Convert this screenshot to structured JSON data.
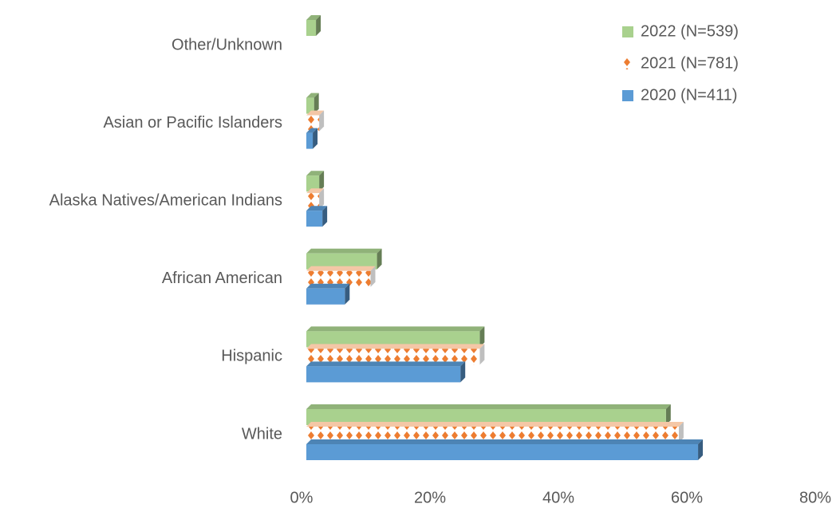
{
  "chart_data": {
    "type": "bar",
    "orientation": "horizontal",
    "three_d": true,
    "categories": [
      "White",
      "Hispanic",
      "African American",
      "Alaska Natives/American Indians",
      "Asian or Pacific Islanders",
      "Other/Unknown"
    ],
    "series": [
      {
        "name": "2022 (N=539)",
        "color": "#a9d18e",
        "values": [
          56,
          27,
          11,
          2,
          1.2,
          1.5
        ]
      },
      {
        "name": "2021 (N=781)",
        "color": "#ed7d31",
        "pattern": "diamond",
        "values": [
          58,
          27,
          10,
          2,
          2,
          0
        ]
      },
      {
        "name": "2020 (N=411)",
        "color": "#5b9bd5",
        "values": [
          61,
          24,
          6,
          2.5,
          1,
          0
        ]
      }
    ],
    "xlim": [
      0,
      80
    ],
    "xticks": [
      {
        "value": 0,
        "label": "0%"
      },
      {
        "value": 20,
        "label": "20%"
      },
      {
        "value": 40,
        "label": "40%"
      },
      {
        "value": 60,
        "label": "60%"
      },
      {
        "value": 80,
        "label": "80%"
      }
    ],
    "grid": false,
    "legend": "top-right"
  }
}
